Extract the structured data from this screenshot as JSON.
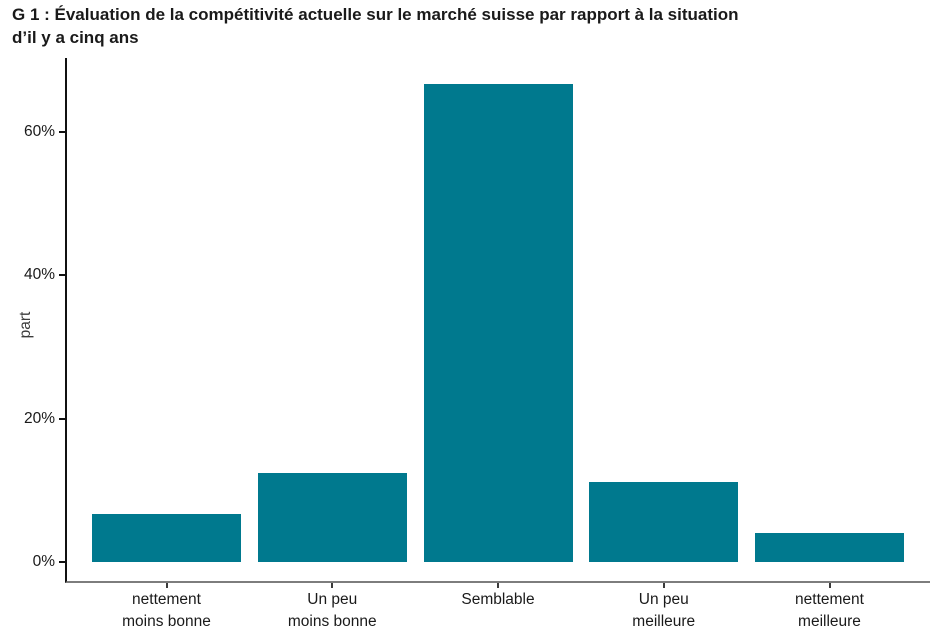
{
  "title": {
    "text": "G 1 : Évaluation de la compétitivité actuelle sur le marché suisse par rapport à la situation\nd’il y a cinq ans"
  },
  "chart_data": {
    "type": "bar",
    "title": "G 1 : Évaluation de la compétitivité actuelle sur le marché suisse par rapport à la situation d’il y a cinq ans",
    "categories": [
      "nettement\nmoins bonne",
      "Un peu\nmoins bonne",
      "Semblable",
      "Un peu\nmeilleure",
      "nettement\nmeilleure"
    ],
    "values": [
      6.7,
      12.4,
      66.7,
      11.2,
      4.1
    ],
    "xlabel": "",
    "ylabel": "part",
    "ylim": [
      0,
      72
    ],
    "y_ticks": [
      {
        "value": 0,
        "label": "0%"
      },
      {
        "value": 20,
        "label": "20%"
      },
      {
        "value": 40,
        "label": "40%"
      },
      {
        "value": 60,
        "label": "60%"
      }
    ],
    "grid": false,
    "legend": "none",
    "bar_color": "#00798E",
    "axis_color": "#111111",
    "baseline_color": "#7d7d7d",
    "text_color": "#1a1a1a"
  }
}
